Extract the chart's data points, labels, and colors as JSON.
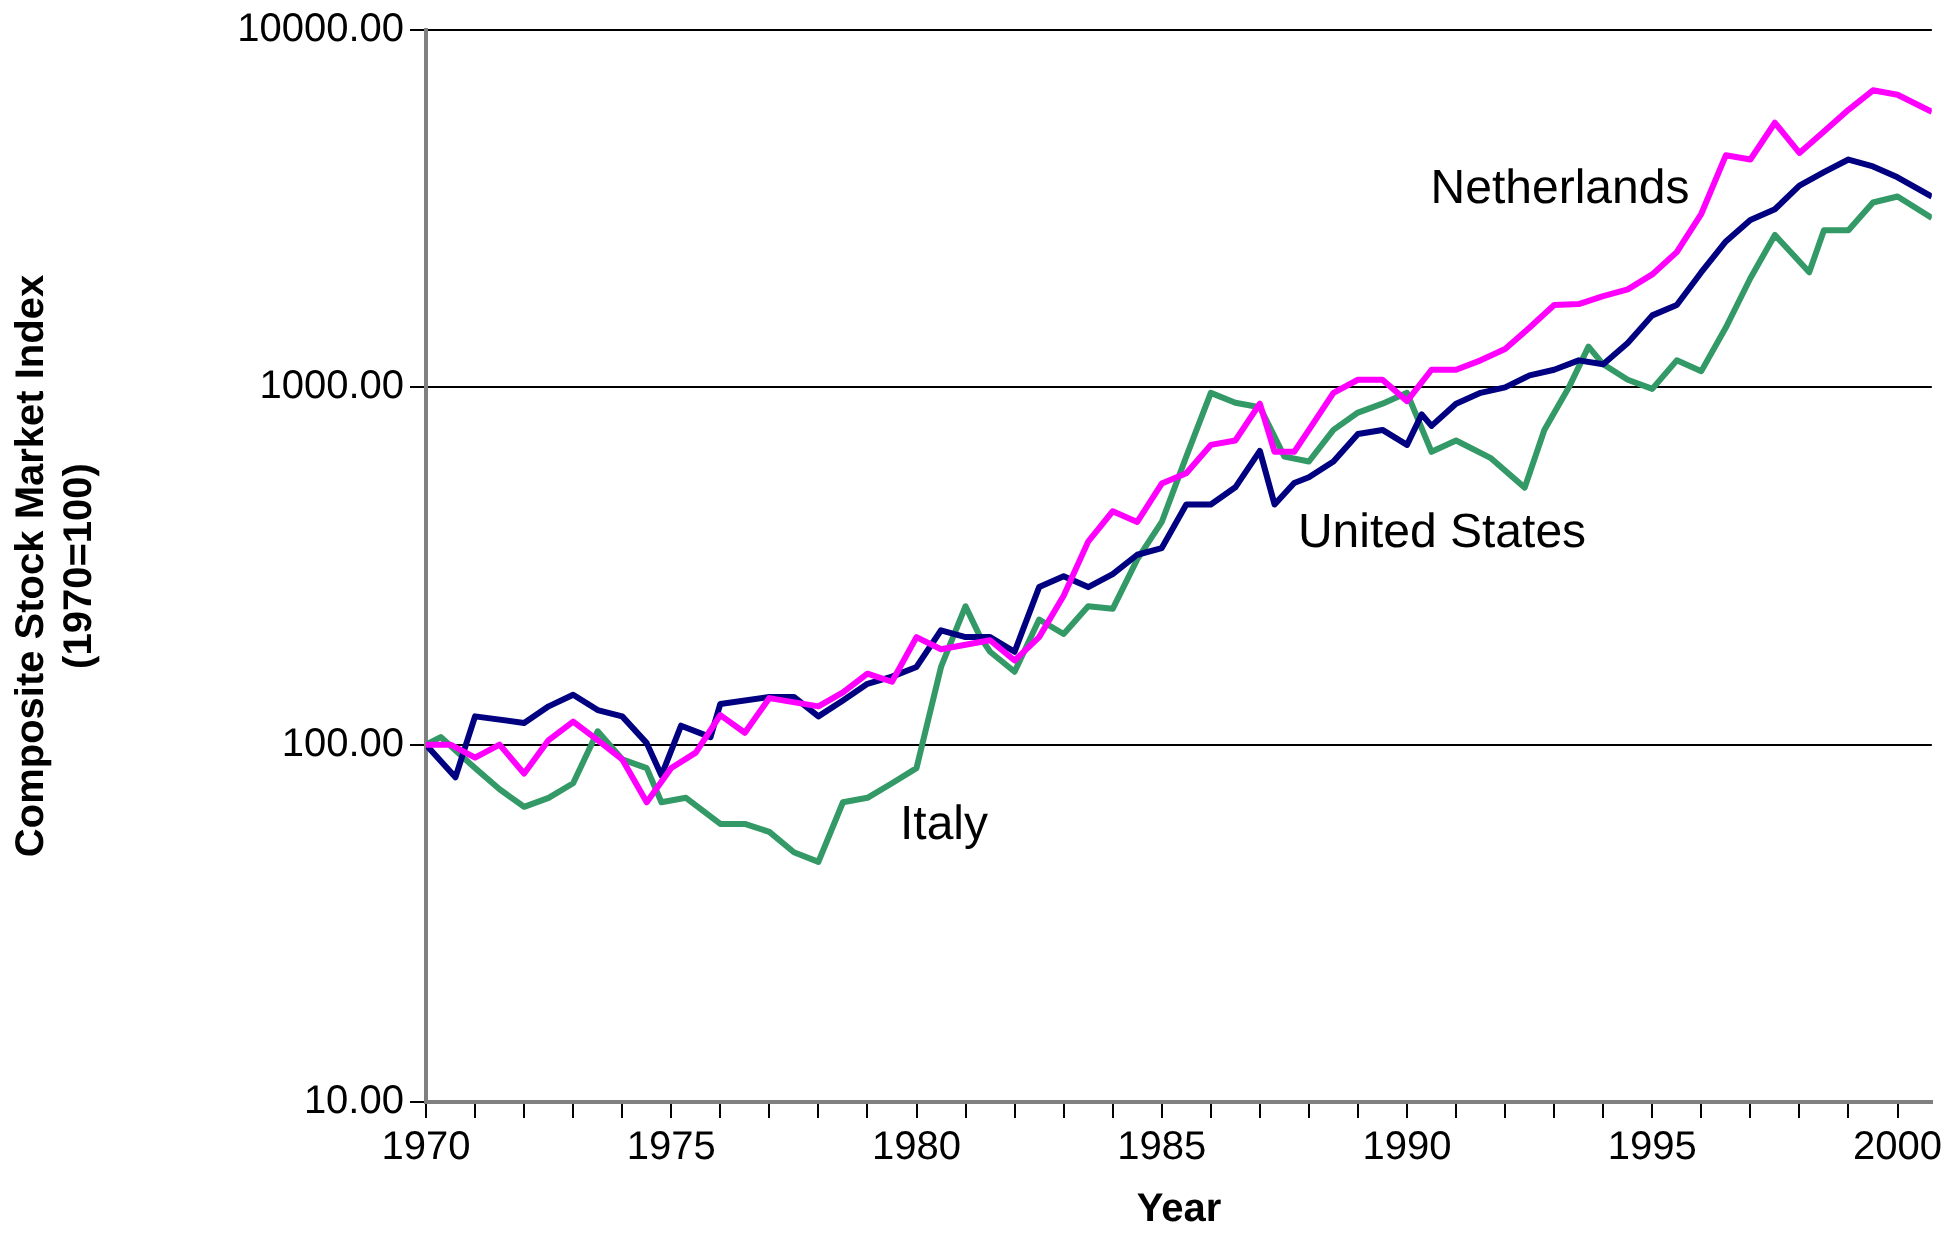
{
  "chart_data": {
    "type": "line",
    "xlabel": "Year",
    "ylabel": "Composite Stock Market Index\n(1970=100)",
    "log": "y",
    "grid": "y",
    "legend": false,
    "marker": "none",
    "line_style": "solid",
    "xlim": [
      1970,
      2000.7
    ],
    "xticks": [
      1970,
      {
        "value": 1971,
        "label": null
      },
      {
        "value": 1972,
        "label": null
      },
      {
        "value": 1973,
        "label": null
      },
      {
        "value": 1974,
        "label": null
      },
      1975,
      {
        "value": 1976,
        "label": null
      },
      {
        "value": 1977,
        "label": null
      },
      {
        "value": 1978,
        "label": null
      },
      {
        "value": 1979,
        "label": null
      },
      1980,
      {
        "value": 1981,
        "label": null
      },
      {
        "value": 1982,
        "label": null
      },
      {
        "value": 1983,
        "label": null
      },
      {
        "value": 1984,
        "label": null
      },
      1985,
      {
        "value": 1986,
        "label": null
      },
      {
        "value": 1987,
        "label": null
      },
      {
        "value": 1988,
        "label": null
      },
      {
        "value": 1989,
        "label": null
      },
      1990,
      {
        "value": 1991,
        "label": null
      },
      {
        "value": 1992,
        "label": null
      },
      {
        "value": 1993,
        "label": null
      },
      {
        "value": 1994,
        "label": null
      },
      1995,
      {
        "value": 1996,
        "label": null
      },
      {
        "value": 1997,
        "label": null
      },
      {
        "value": 1998,
        "label": null
      },
      {
        "value": 1999,
        "label": null
      },
      2000
    ],
    "ylim": [
      10,
      10000
    ],
    "yticks": [
      {
        "value": 10,
        "label": "10.00"
      },
      {
        "value": 100,
        "label": "100.00"
      },
      {
        "value": 1000,
        "label": "1000.00"
      },
      {
        "value": 10000,
        "label": "10000.00"
      }
    ],
    "series": [
      {
        "name": "Netherlands",
        "color": "#ff00ff",
        "x": [
          1970,
          1970.5,
          1971,
          1971.5,
          1972,
          1972.5,
          1973,
          1973.5,
          1974,
          1974.5,
          1975,
          1975.5,
          1976,
          1976.5,
          1977,
          1978,
          1978.5,
          1979,
          1979.5,
          1980,
          1980.5,
          1981.5,
          1982,
          1982.5,
          1983,
          1983.5,
          1984,
          1984.5,
          1985,
          1985.5,
          1986,
          1986.5,
          1987,
          1987.3,
          1987.7,
          1988,
          1988.5,
          1989,
          1989.5,
          1990,
          1990.5,
          1991,
          1991.5,
          1992,
          1992.5,
          1993,
          1993.5,
          1994,
          1994.5,
          1995,
          1995.5,
          1996,
          1996.5,
          1997,
          1997.5,
          1998,
          1998.5,
          1999,
          1999.5,
          2000,
          2000.7
        ],
        "values": [
          100,
          100,
          92,
          100,
          83,
          103,
          116,
          103,
          91,
          69,
          86,
          95,
          121,
          108,
          135,
          128,
          140,
          158,
          150,
          200,
          185,
          196,
          172,
          200,
          261,
          370,
          450,
          420,
          538,
          575,
          690,
          710,
          900,
          660,
          660,
          760,
          965,
          1050,
          1050,
          915,
          1120,
          1120,
          1190,
          1280,
          1470,
          1700,
          1710,
          1800,
          1880,
          2070,
          2390,
          3060,
          4460,
          4340,
          5500,
          4530,
          5200,
          5980,
          6780,
          6590,
          5900
        ]
      },
      {
        "name": "United States",
        "color": "#000080",
        "x": [
          1970,
          1970.6,
          1971,
          1972,
          1972.5,
          1973,
          1973.5,
          1974,
          1974.5,
          1974.8,
          1975.2,
          1975.8,
          1976,
          1977,
          1977.5,
          1978,
          1978.5,
          1979,
          1979.5,
          1980,
          1980.5,
          1981,
          1981.5,
          1982,
          1982.5,
          1983,
          1983.5,
          1984,
          1984.5,
          1985,
          1985.5,
          1986,
          1986.5,
          1987,
          1987.3,
          1987.7,
          1988,
          1988.5,
          1989,
          1989.5,
          1990,
          1990.3,
          1990.5,
          1991,
          1991.5,
          1992,
          1992.5,
          1993,
          1993.5,
          1994,
          1994.5,
          1995,
          1995.5,
          1996,
          1996.5,
          1997,
          1997.5,
          1998,
          1998.5,
          1999,
          1999.5,
          2000,
          2000.7
        ],
        "values": [
          100,
          81,
          120,
          115,
          128,
          138,
          125,
          120,
          101,
          82,
          113,
          105,
          130,
          136,
          136,
          120,
          133,
          148,
          155,
          165,
          209,
          200,
          200,
          182,
          276,
          296,
          276,
          300,
          340,
          355,
          470,
          470,
          525,
          664,
          470,
          540,
          560,
          620,
          740,
          760,
          690,
          840,
          780,
          900,
          965,
          1000,
          1080,
          1120,
          1190,
          1160,
          1330,
          1590,
          1700,
          2100,
          2560,
          2940,
          3150,
          3670,
          4000,
          4340,
          4150,
          3870,
          3420
        ]
      },
      {
        "name": "Italy",
        "color": "#339966",
        "x": [
          1970,
          1970.3,
          1971,
          1971.5,
          1972,
          1972.5,
          1973,
          1973.5,
          1974,
          1974.5,
          1974.8,
          1975.3,
          1976,
          1976.5,
          1977,
          1977.5,
          1978,
          1978.5,
          1979,
          1979.5,
          1980,
          1980.5,
          1981,
          1981.3,
          1981.5,
          1982,
          1982.5,
          1983,
          1983.5,
          1984,
          1984.5,
          1985,
          1985.5,
          1986,
          1986.5,
          1987,
          1987.5,
          1988,
          1988.5,
          1989,
          1989.5,
          1990,
          1990.5,
          1991,
          1991.7,
          1992.4,
          1992.8,
          1993.3,
          1993.7,
          1994,
          1994.5,
          1995,
          1995.5,
          1996,
          1996.5,
          1997,
          1997.5,
          1998.2,
          1998.5,
          1999,
          1999.5,
          2000,
          2000.7
        ],
        "values": [
          100,
          105,
          86,
          75,
          67,
          71,
          78,
          109,
          91,
          86,
          69,
          71,
          60,
          60,
          57,
          50,
          47,
          69,
          71,
          78,
          86,
          165,
          244,
          200,
          182,
          160,
          224,
          204,
          244,
          240,
          330,
          420,
          640,
          965,
          905,
          880,
          640,
          620,
          760,
          850,
          900,
          965,
          660,
          710,
          635,
          524,
          760,
          1000,
          1300,
          1160,
          1050,
          990,
          1190,
          1110,
          1470,
          2020,
          2670,
          2100,
          2750,
          2750,
          3290,
          3420,
          2980
        ]
      }
    ]
  }
}
